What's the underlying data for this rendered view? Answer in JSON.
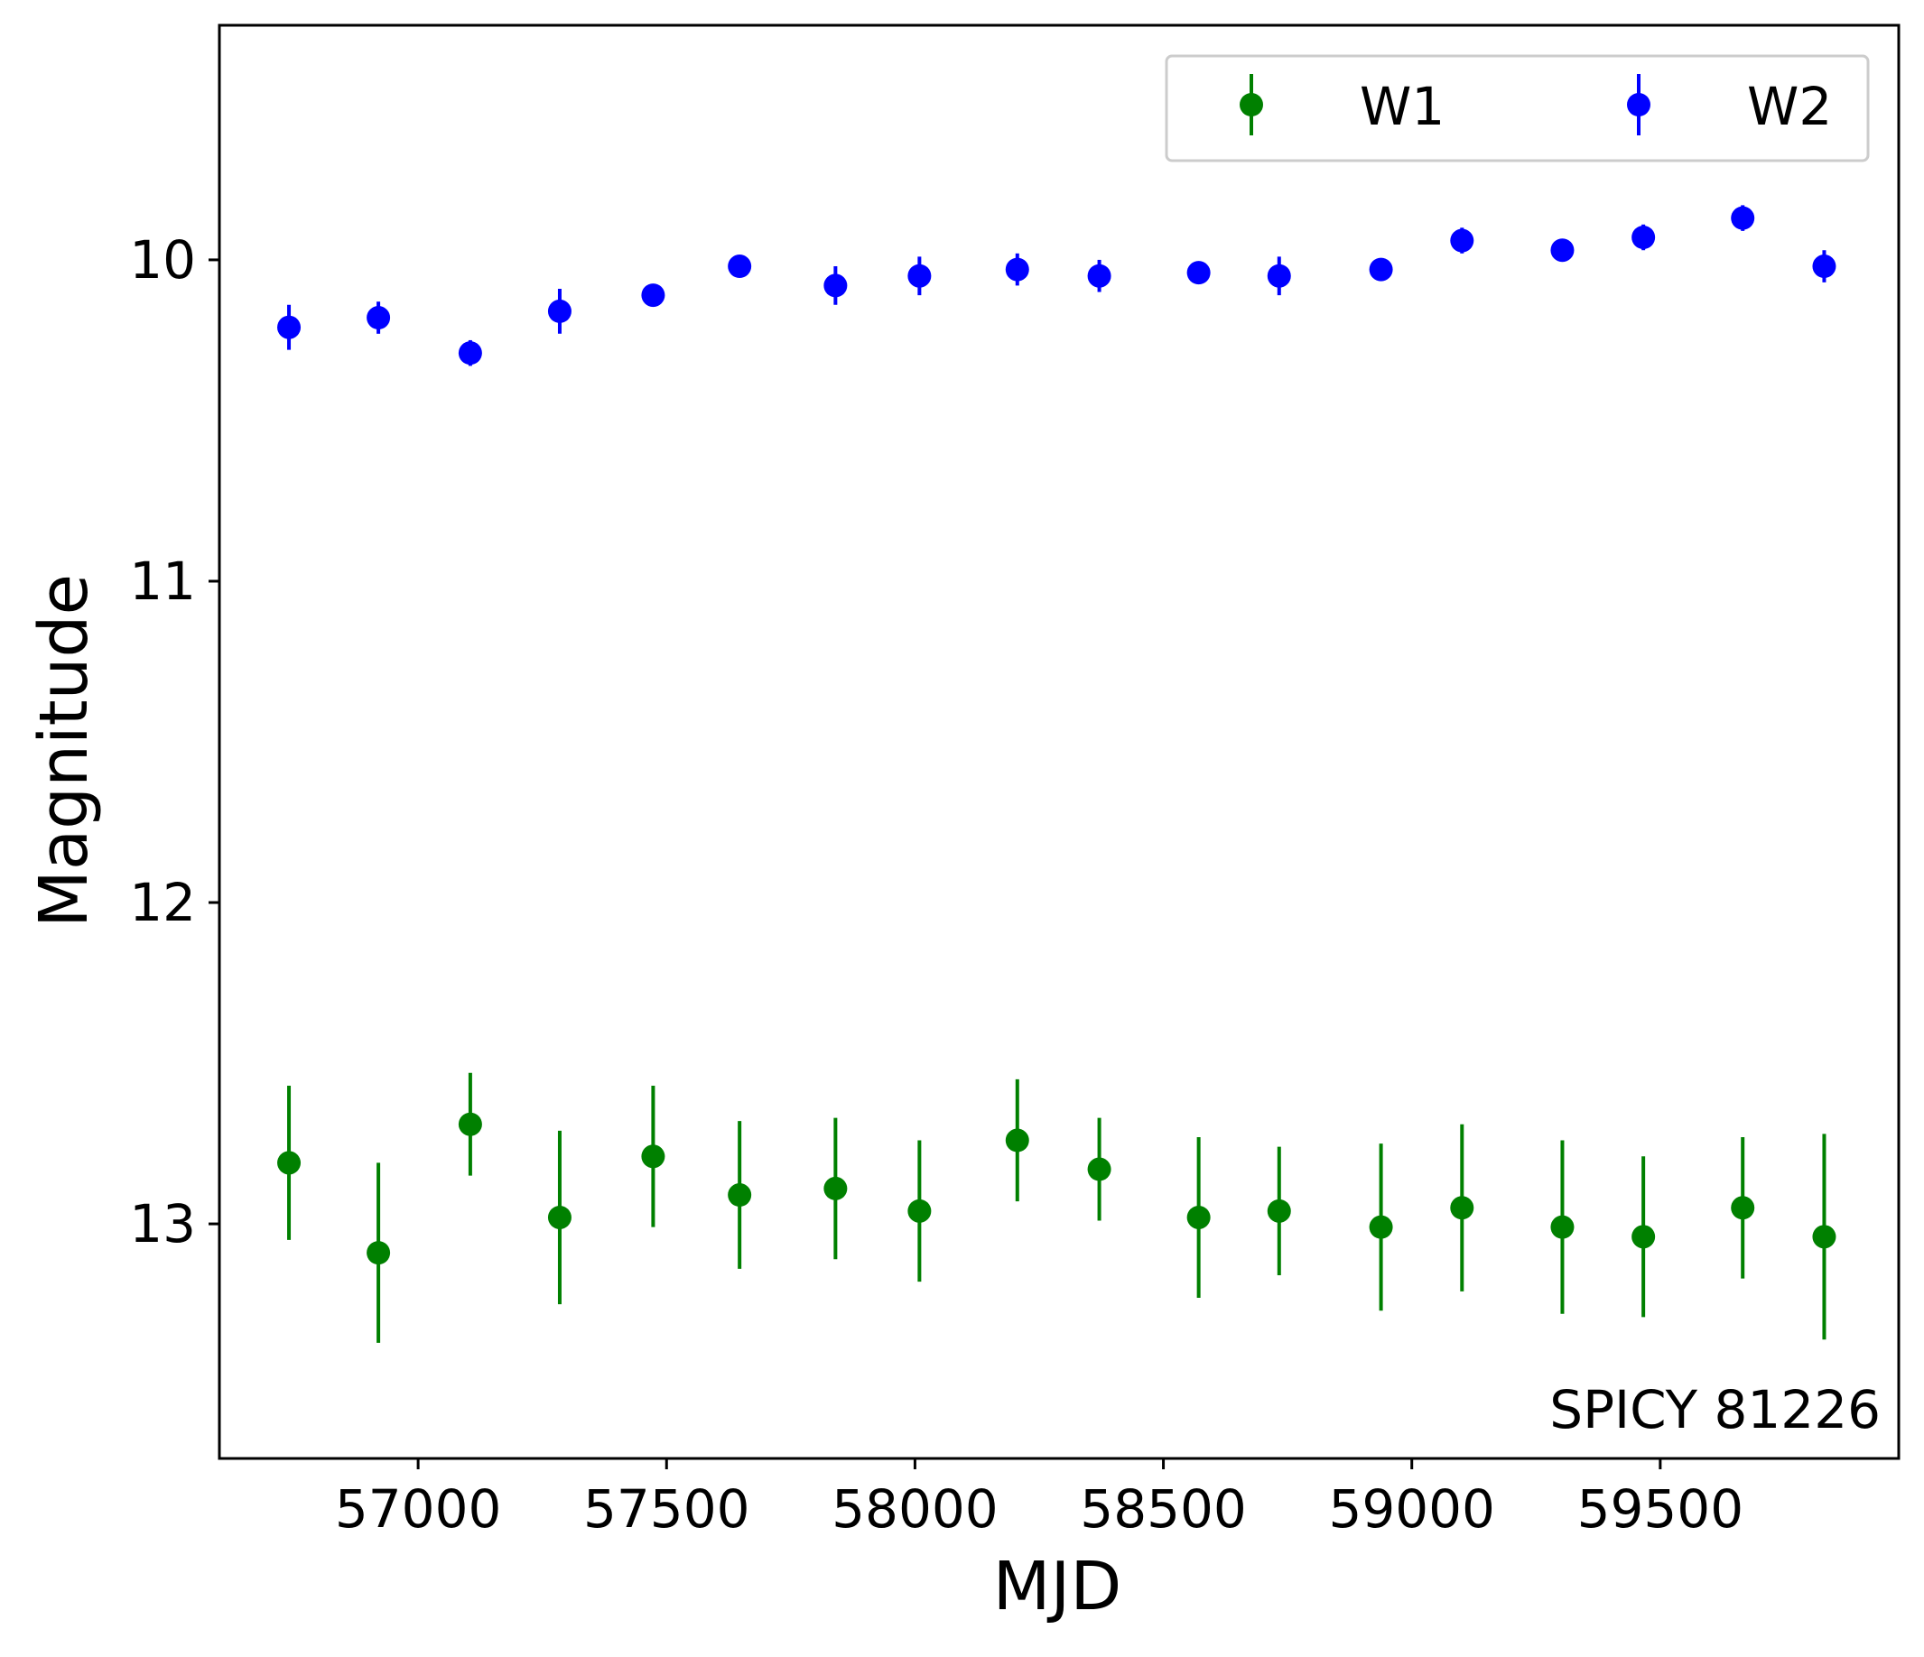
{
  "chart_data": {
    "type": "scatter",
    "title": "",
    "xlabel": "MJD",
    "ylabel": "Magnitude",
    "xlim": [
      56600,
      59980
    ],
    "ylim": [
      13.73,
      9.27
    ],
    "y_inverted": true,
    "x_ticks": [
      57000,
      57500,
      58000,
      58500,
      59000,
      59500
    ],
    "x_tick_labels": [
      "57000",
      "57500",
      "58000",
      "58500",
      "59000",
      "59500"
    ],
    "y_ticks": [
      10,
      11,
      12,
      13
    ],
    "y_tick_labels": [
      "10",
      "11",
      "12",
      "13"
    ],
    "grid": false,
    "legend_position": "top-right",
    "annotation": "SPICY 81226",
    "series": [
      {
        "name": "W1",
        "color": "#008000",
        "x": [
          56740,
          56920,
          57105,
          57285,
          57473,
          57647,
          57840,
          58009,
          58206,
          58371,
          58571,
          58733,
          58938,
          59101,
          59303,
          59466,
          59666,
          59830
        ],
        "y": [
          12.81,
          13.09,
          12.69,
          12.98,
          12.79,
          12.91,
          12.89,
          12.96,
          12.74,
          12.83,
          12.98,
          12.96,
          13.01,
          12.95,
          13.01,
          13.04,
          12.95,
          13.04
        ],
        "yerr": [
          0.24,
          0.28,
          0.16,
          0.27,
          0.22,
          0.23,
          0.22,
          0.22,
          0.19,
          0.16,
          0.25,
          0.2,
          0.26,
          0.26,
          0.27,
          0.25,
          0.22,
          0.32
        ]
      },
      {
        "name": "W2",
        "color": "#0000ff",
        "x": [
          56740,
          56920,
          57105,
          57285,
          57473,
          57647,
          57840,
          58009,
          58206,
          58371,
          58571,
          58733,
          58938,
          59101,
          59303,
          59466,
          59666,
          59830
        ],
        "y": [
          10.21,
          10.18,
          10.29,
          10.16,
          10.11,
          10.02,
          10.08,
          10.05,
          10.03,
          10.05,
          10.04,
          10.05,
          10.03,
          9.94,
          9.97,
          9.93,
          9.87,
          10.02
        ],
        "yerr": [
          0.07,
          0.05,
          0.04,
          0.07,
          0.03,
          0.03,
          0.06,
          0.06,
          0.05,
          0.05,
          0.03,
          0.06,
          0.03,
          0.04,
          0.03,
          0.04,
          0.04,
          0.05
        ]
      }
    ]
  }
}
